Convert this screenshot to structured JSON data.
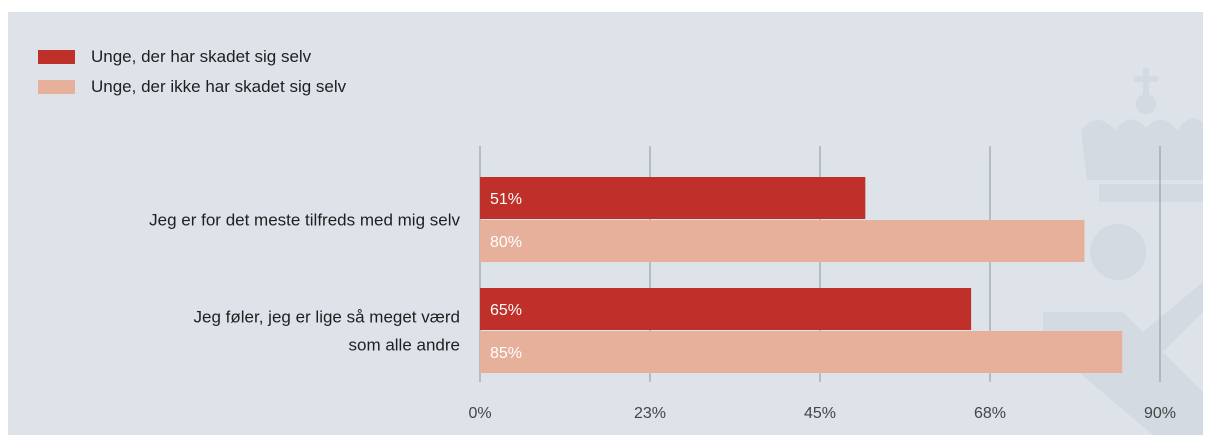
{
  "legend": [
    {
      "label": "Unge, der har skadet sig selv",
      "color": "#c0302a"
    },
    {
      "label": "Unge, der ikke har skadet sig selv",
      "color": "#e6b09b"
    }
  ],
  "chart_data": {
    "type": "bar",
    "orientation": "horizontal",
    "categories": [
      [
        "Jeg er for det meste tilfreds med mig selv"
      ],
      [
        "Jeg føler, jeg er lige så meget værd",
        "som alle andre"
      ]
    ],
    "series": [
      {
        "name": "Unge, der har skadet sig selv",
        "values": [
          51,
          65
        ],
        "labels": [
          "51%",
          "65%"
        ],
        "color": "#c0302a"
      },
      {
        "name": "Unge, der ikke har skadet sig selv",
        "values": [
          80,
          85
        ],
        "labels": [
          "80%",
          "85%"
        ],
        "color": "#e6b09b"
      }
    ],
    "xticks": [
      0,
      22.5,
      45,
      67.5,
      90
    ],
    "xtick_labels": [
      "0%",
      "23%",
      "45%",
      "68%",
      "90%"
    ],
    "xlim": [
      0,
      90
    ],
    "grid": true,
    "legend_position": "top-left"
  }
}
